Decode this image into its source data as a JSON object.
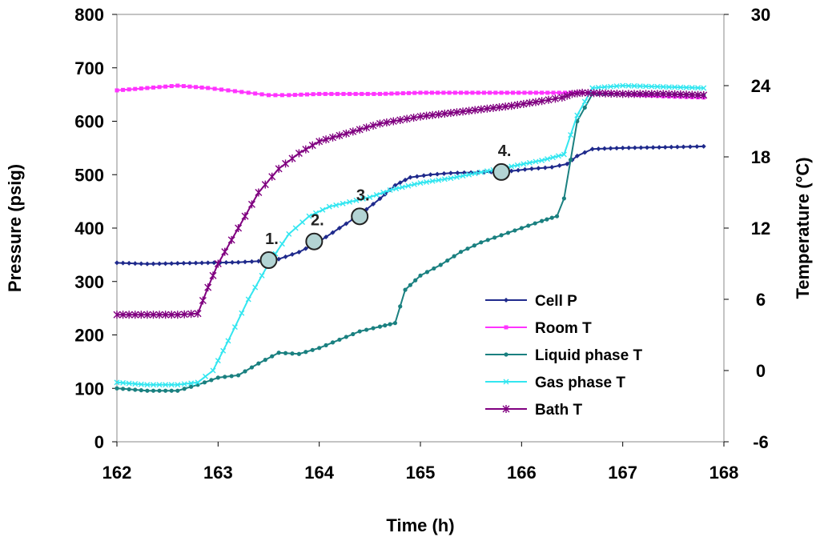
{
  "chart_data": {
    "type": "line",
    "title": "",
    "xlabel": "Time (h)",
    "ylabel": "Pressure (psig)",
    "y2label": "Temperature (°C)",
    "xlim": [
      162,
      168
    ],
    "ylim": [
      0,
      800
    ],
    "y2lim": [
      -6,
      30
    ],
    "xticks": [
      "162",
      "163",
      "164",
      "165",
      "166",
      "167",
      "168"
    ],
    "yticks": [
      "0",
      "100",
      "200",
      "300",
      "400",
      "500",
      "600",
      "700",
      "800"
    ],
    "y2ticks": [
      "-6",
      "0",
      "6",
      "12",
      "18",
      "24",
      "30"
    ],
    "grid": false,
    "legend_position": "bottom-right",
    "series": [
      {
        "name": "Cell P",
        "axis": "left",
        "color": "#1f2a8c",
        "marker": "diamond",
        "points": [
          [
            162.0,
            335
          ],
          [
            162.3,
            333
          ],
          [
            162.6,
            334
          ],
          [
            162.9,
            335
          ],
          [
            163.2,
            336
          ],
          [
            163.4,
            338
          ],
          [
            163.6,
            342
          ],
          [
            163.8,
            355
          ],
          [
            164.0,
            375
          ],
          [
            164.2,
            400
          ],
          [
            164.4,
            425
          ],
          [
            164.6,
            455
          ],
          [
            164.75,
            480
          ],
          [
            164.9,
            495
          ],
          [
            165.1,
            500
          ],
          [
            165.3,
            503
          ],
          [
            165.5,
            504
          ],
          [
            165.7,
            505
          ],
          [
            165.9,
            507
          ],
          [
            166.1,
            511
          ],
          [
            166.3,
            514
          ],
          [
            166.45,
            520
          ],
          [
            166.55,
            535
          ],
          [
            166.7,
            548
          ],
          [
            167.0,
            550
          ],
          [
            167.3,
            551
          ],
          [
            167.6,
            552
          ],
          [
            167.8,
            553
          ]
        ]
      },
      {
        "name": "Room T",
        "axis": "right",
        "color": "#ff33ff",
        "marker": "square",
        "points": [
          [
            162.0,
            23.6
          ],
          [
            162.3,
            23.8
          ],
          [
            162.6,
            24.0
          ],
          [
            162.9,
            23.8
          ],
          [
            163.1,
            23.6
          ],
          [
            163.3,
            23.4
          ],
          [
            163.5,
            23.2
          ],
          [
            163.7,
            23.2
          ],
          [
            164.0,
            23.3
          ],
          [
            164.3,
            23.3
          ],
          [
            164.6,
            23.3
          ],
          [
            165.0,
            23.4
          ],
          [
            165.4,
            23.4
          ],
          [
            165.8,
            23.4
          ],
          [
            166.2,
            23.4
          ],
          [
            166.6,
            23.4
          ],
          [
            167.0,
            23.3
          ],
          [
            167.4,
            23.1
          ],
          [
            167.8,
            23.0
          ]
        ]
      },
      {
        "name": "Liquid phase T",
        "axis": "right",
        "color": "#1a8080",
        "marker": "circle",
        "points": [
          [
            162.0,
            -1.5
          ],
          [
            162.3,
            -1.7
          ],
          [
            162.6,
            -1.7
          ],
          [
            162.8,
            -1.2
          ],
          [
            163.0,
            -0.6
          ],
          [
            163.2,
            -0.4
          ],
          [
            163.4,
            0.6
          ],
          [
            163.6,
            1.5
          ],
          [
            163.8,
            1.4
          ],
          [
            164.0,
            1.9
          ],
          [
            164.2,
            2.6
          ],
          [
            164.4,
            3.3
          ],
          [
            164.6,
            3.7
          ],
          [
            164.75,
            4.0
          ],
          [
            164.85,
            6.8
          ],
          [
            165.0,
            8.0
          ],
          [
            165.2,
            8.9
          ],
          [
            165.4,
            10.0
          ],
          [
            165.6,
            10.8
          ],
          [
            165.8,
            11.4
          ],
          [
            166.0,
            12.0
          ],
          [
            166.2,
            12.6
          ],
          [
            166.35,
            13.0
          ],
          [
            166.42,
            14.5
          ],
          [
            166.55,
            21.0
          ],
          [
            166.7,
            23.3
          ],
          [
            167.0,
            23.3
          ],
          [
            167.4,
            23.3
          ],
          [
            167.8,
            23.2
          ]
        ]
      },
      {
        "name": "Gas phase T",
        "axis": "right",
        "color": "#33e6f0",
        "marker": "x",
        "points": [
          [
            162.0,
            -1.0
          ],
          [
            162.3,
            -1.2
          ],
          [
            162.6,
            -1.2
          ],
          [
            162.8,
            -1.0
          ],
          [
            162.95,
            0.0
          ],
          [
            163.1,
            2.5
          ],
          [
            163.3,
            6.0
          ],
          [
            163.5,
            9.0
          ],
          [
            163.7,
            11.5
          ],
          [
            163.9,
            13.0
          ],
          [
            164.1,
            13.8
          ],
          [
            164.3,
            14.2
          ],
          [
            164.5,
            14.6
          ],
          [
            164.7,
            15.2
          ],
          [
            165.0,
            15.8
          ],
          [
            165.3,
            16.2
          ],
          [
            165.6,
            16.7
          ],
          [
            165.9,
            17.2
          ],
          [
            166.2,
            17.7
          ],
          [
            166.42,
            18.2
          ],
          [
            166.55,
            21.5
          ],
          [
            166.7,
            23.8
          ],
          [
            167.0,
            24.0
          ],
          [
            167.4,
            23.9
          ],
          [
            167.8,
            23.8
          ]
        ]
      },
      {
        "name": "Bath T",
        "axis": "right",
        "color": "#800080",
        "marker": "star",
        "points": [
          [
            162.0,
            4.7
          ],
          [
            162.3,
            4.7
          ],
          [
            162.6,
            4.7
          ],
          [
            162.8,
            4.8
          ],
          [
            162.9,
            7.0
          ],
          [
            163.0,
            9.0
          ],
          [
            163.2,
            12.0
          ],
          [
            163.4,
            15.0
          ],
          [
            163.6,
            17.0
          ],
          [
            163.8,
            18.3
          ],
          [
            164.0,
            19.3
          ],
          [
            164.2,
            19.8
          ],
          [
            164.4,
            20.3
          ],
          [
            164.6,
            20.8
          ],
          [
            164.8,
            21.1
          ],
          [
            165.0,
            21.4
          ],
          [
            165.3,
            21.7
          ],
          [
            165.6,
            22.0
          ],
          [
            165.9,
            22.3
          ],
          [
            166.2,
            22.7
          ],
          [
            166.4,
            23.0
          ],
          [
            166.5,
            23.3
          ],
          [
            166.6,
            23.4
          ],
          [
            167.0,
            23.3
          ],
          [
            167.4,
            23.3
          ],
          [
            167.8,
            23.2
          ]
        ]
      }
    ],
    "annotations": [
      {
        "label": "1.",
        "x": 163.5,
        "y": 340
      },
      {
        "label": "2.",
        "x": 163.95,
        "y": 375
      },
      {
        "label": "3.",
        "x": 164.4,
        "y": 422
      },
      {
        "label": "4.",
        "x": 165.8,
        "y": 505
      }
    ]
  }
}
